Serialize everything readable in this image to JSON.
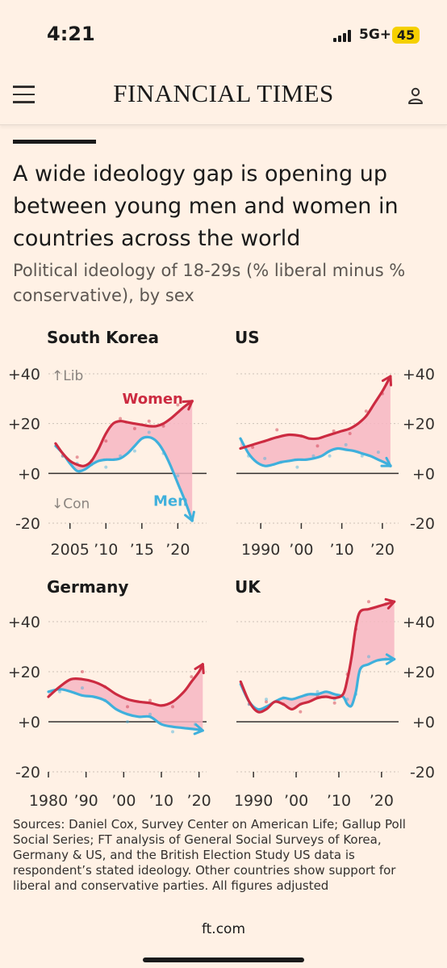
{
  "status_bar": {
    "time": "4:21",
    "network": "5G+",
    "battery": "45"
  },
  "header": {
    "brand": "FINANCIAL TIMES",
    "menu_icon": "hamburger-menu-icon",
    "user_icon": "user-icon"
  },
  "article": {
    "headline": "A wide ideology gap is opening up between young men and women in countries across the world",
    "subtitle": "Political ideology of 18-29s (% liberal minus % conservative), by sex"
  },
  "colors": {
    "women": "#cc2b41",
    "men": "#3fb0dc",
    "gap_fill": "#f7b6c3"
  },
  "chart_data": [
    {
      "type": "line",
      "title": "South Korea",
      "annotations": {
        "lib": "↑Lib",
        "con": "↓Con"
      },
      "labels": {
        "women": "Women",
        "men": "Men"
      },
      "xlim": [
        2002,
        2024
      ],
      "ylim": [
        -20,
        40
      ],
      "x_ticks": [
        {
          "v": 2005,
          "label": "2005"
        },
        {
          "v": 2010,
          "label": "’10"
        },
        {
          "v": 2015,
          "label": "’15"
        },
        {
          "v": 2020,
          "label": "’20"
        }
      ],
      "y_ticks": [
        {
          "v": 40,
          "label": "+40"
        },
        {
          "v": 20,
          "label": "+20"
        },
        {
          "v": 0,
          "label": "+0"
        },
        {
          "v": -20,
          "label": "-20"
        }
      ],
      "series": [
        {
          "name": "Women",
          "points": [
            [
              2003,
              12
            ],
            [
              2004,
              8
            ],
            [
              2005,
              5
            ],
            [
              2006,
              3.5
            ],
            [
              2007,
              3
            ],
            [
              2008,
              5
            ],
            [
              2009,
              10
            ],
            [
              2010,
              16
            ],
            [
              2011,
              20
            ],
            [
              2012,
              21
            ],
            [
              2013,
              20.5
            ],
            [
              2014,
              20
            ],
            [
              2015,
              19.5
            ],
            [
              2016,
              19
            ],
            [
              2017,
              19
            ],
            [
              2018,
              20
            ],
            [
              2019,
              22
            ],
            [
              2020,
              24.5
            ],
            [
              2021,
              27
            ],
            [
              2022,
              29
            ]
          ]
        },
        {
          "name": "Men",
          "points": [
            [
              2003,
              11
            ],
            [
              2004,
              8
            ],
            [
              2005,
              4
            ],
            [
              2006,
              1
            ],
            [
              2007,
              1.5
            ],
            [
              2008,
              3.5
            ],
            [
              2009,
              5
            ],
            [
              2010,
              5.5
            ],
            [
              2011,
              5.5
            ],
            [
              2012,
              6
            ],
            [
              2013,
              8
            ],
            [
              2014,
              11
            ],
            [
              2015,
              14
            ],
            [
              2016,
              14.5
            ],
            [
              2017,
              13
            ],
            [
              2018,
              9
            ],
            [
              2019,
              3
            ],
            [
              2020,
              -4
            ],
            [
              2021,
              -11
            ],
            [
              2022,
              -19
            ]
          ]
        }
      ]
    },
    {
      "type": "line",
      "title": "US",
      "xlim": [
        1984,
        2024
      ],
      "ylim": [
        -20,
        40
      ],
      "x_ticks": [
        {
          "v": 1990,
          "label": "1990"
        },
        {
          "v": 2000,
          "label": "’00"
        },
        {
          "v": 2010,
          "label": "’10"
        },
        {
          "v": 2020,
          "label": "’20"
        }
      ],
      "y_ticks": [
        {
          "v": 40,
          "label": "+40"
        },
        {
          "v": 20,
          "label": "+20"
        },
        {
          "v": 0,
          "label": "+0"
        },
        {
          "v": -20,
          "label": "-20"
        }
      ],
      "series": [
        {
          "name": "Women",
          "points": [
            [
              1985,
              10
            ],
            [
              1988,
              11.5
            ],
            [
              1991,
              13
            ],
            [
              1994,
              14.5
            ],
            [
              1997,
              15.5
            ],
            [
              2000,
              15
            ],
            [
              2002,
              14
            ],
            [
              2004,
              14
            ],
            [
              2006,
              15
            ],
            [
              2008,
              16
            ],
            [
              2010,
              17
            ],
            [
              2012,
              18
            ],
            [
              2014,
              20
            ],
            [
              2016,
              23
            ],
            [
              2018,
              28
            ],
            [
              2020,
              33
            ],
            [
              2022,
              39
            ]
          ]
        },
        {
          "name": "Men",
          "points": [
            [
              1985,
              14
            ],
            [
              1987,
              8
            ],
            [
              1989,
              4.5
            ],
            [
              1991,
              3
            ],
            [
              1993,
              3.5
            ],
            [
              1995,
              4.5
            ],
            [
              1997,
              5
            ],
            [
              1999,
              5.5
            ],
            [
              2001,
              5.5
            ],
            [
              2003,
              6
            ],
            [
              2005,
              7
            ],
            [
              2007,
              9
            ],
            [
              2009,
              10
            ],
            [
              2011,
              9.5
            ],
            [
              2013,
              9
            ],
            [
              2015,
              8
            ],
            [
              2017,
              7
            ],
            [
              2019,
              5.5
            ],
            [
              2021,
              4
            ],
            [
              2022,
              3
            ]
          ]
        }
      ]
    },
    {
      "type": "line",
      "title": "Germany",
      "xlim": [
        1980,
        2022
      ],
      "ylim": [
        -20,
        40
      ],
      "x_ticks": [
        {
          "v": 1980,
          "label": "1980"
        },
        {
          "v": 1990,
          "label": "’90"
        },
        {
          "v": 2000,
          "label": "’00"
        },
        {
          "v": 2010,
          "label": "’10"
        },
        {
          "v": 2020,
          "label": "’20"
        }
      ],
      "y_ticks": [
        {
          "v": 40,
          "label": "+40"
        },
        {
          "v": 20,
          "label": "+20"
        },
        {
          "v": 0,
          "label": "+0"
        },
        {
          "v": -20,
          "label": "-20"
        }
      ],
      "series": [
        {
          "name": "Women",
          "points": [
            [
              1980,
              10
            ],
            [
              1983,
              14
            ],
            [
              1986,
              17
            ],
            [
              1989,
              17
            ],
            [
              1992,
              16
            ],
            [
              1995,
              14
            ],
            [
              1998,
              11
            ],
            [
              2001,
              9
            ],
            [
              2004,
              8
            ],
            [
              2007,
              7.5
            ],
            [
              2010,
              6.5
            ],
            [
              2013,
              8
            ],
            [
              2016,
              12
            ],
            [
              2018,
              16
            ],
            [
              2020,
              20
            ],
            [
              2021,
              23
            ]
          ]
        },
        {
          "name": "Men",
          "points": [
            [
              1980,
              12
            ],
            [
              1983,
              13
            ],
            [
              1986,
              12
            ],
            [
              1989,
              10.5
            ],
            [
              1992,
              10
            ],
            [
              1995,
              8.5
            ],
            [
              1998,
              5
            ],
            [
              2001,
              3
            ],
            [
              2004,
              2
            ],
            [
              2007,
              2
            ],
            [
              2010,
              -1
            ],
            [
              2013,
              -2
            ],
            [
              2016,
              -2.5
            ],
            [
              2019,
              -3
            ],
            [
              2021,
              -3.5
            ]
          ]
        }
      ]
    },
    {
      "type": "line",
      "title": "UK",
      "xlim": [
        1986,
        2024
      ],
      "ylim": [
        -20,
        40
      ],
      "x_ticks": [
        {
          "v": 1990,
          "label": "1990"
        },
        {
          "v": 2000,
          "label": "’00"
        },
        {
          "v": 2010,
          "label": "’10"
        },
        {
          "v": 2020,
          "label": "’20"
        }
      ],
      "y_ticks": [
        {
          "v": 40,
          "label": "+40"
        },
        {
          "v": 20,
          "label": "+20"
        },
        {
          "v": 0,
          "label": "+0"
        },
        {
          "v": -20,
          "label": "-20"
        }
      ],
      "series": [
        {
          "name": "Women",
          "points": [
            [
              1987,
              16
            ],
            [
              1989,
              8
            ],
            [
              1991,
              4
            ],
            [
              1993,
              5
            ],
            [
              1995,
              8
            ],
            [
              1997,
              7
            ],
            [
              1999,
              5
            ],
            [
              2001,
              7
            ],
            [
              2003,
              8
            ],
            [
              2005,
              9.5
            ],
            [
              2007,
              10
            ],
            [
              2009,
              9.5
            ],
            [
              2011,
              11
            ],
            [
              2012,
              17
            ],
            [
              2013,
              26
            ],
            [
              2014,
              38
            ],
            [
              2015,
              44
            ],
            [
              2017,
              45
            ],
            [
              2019,
              46
            ],
            [
              2021,
              47
            ],
            [
              2023,
              48
            ]
          ]
        },
        {
          "name": "Men",
          "points": [
            [
              1987,
              15
            ],
            [
              1989,
              8
            ],
            [
              1991,
              5
            ],
            [
              1993,
              6
            ],
            [
              1995,
              8
            ],
            [
              1997,
              9.5
            ],
            [
              1999,
              9
            ],
            [
              2001,
              10
            ],
            [
              2003,
              11
            ],
            [
              2005,
              11
            ],
            [
              2007,
              12
            ],
            [
              2009,
              11
            ],
            [
              2011,
              10
            ],
            [
              2012,
              7
            ],
            [
              2013,
              6.5
            ],
            [
              2014,
              12
            ],
            [
              2015,
              21
            ],
            [
              2017,
              23
            ],
            [
              2019,
              24.5
            ],
            [
              2021,
              25
            ],
            [
              2023,
              25
            ]
          ]
        }
      ]
    }
  ],
  "sources": "Sources: Daniel Cox, Survey Center on American Life; Gallup Poll Social Series; FT analysis of General Social Surveys of Korea, Germany & US, and the British Election Study US data is respondent’s stated ideology. Other countries show support for liberal and conservative parties. All figures adjusted",
  "footer": {
    "domain": "ft.com"
  }
}
